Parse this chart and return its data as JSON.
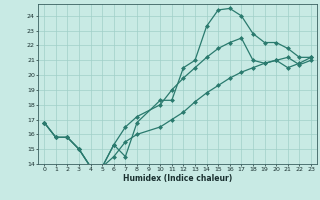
{
  "xlabel": "Humidex (Indice chaleur)",
  "bg_color": "#c8eae4",
  "grid_color": "#a0cfc8",
  "line_color": "#2a7a6e",
  "xlim": [
    -0.5,
    23.5
  ],
  "ylim": [
    14,
    24.8
  ],
  "xticks": [
    0,
    1,
    2,
    3,
    4,
    5,
    6,
    7,
    8,
    9,
    10,
    11,
    12,
    13,
    14,
    15,
    16,
    17,
    18,
    19,
    20,
    21,
    22,
    23
  ],
  "yticks": [
    14,
    15,
    16,
    17,
    18,
    19,
    20,
    21,
    22,
    23,
    24
  ],
  "line1_x": [
    0,
    1,
    2,
    3,
    4,
    5,
    6,
    7,
    8,
    10,
    11,
    12,
    13,
    14,
    15,
    16,
    17,
    18,
    19,
    20,
    21,
    22,
    23
  ],
  "line1_y": [
    16.8,
    15.8,
    15.8,
    15.0,
    13.8,
    13.8,
    15.3,
    14.5,
    16.8,
    18.3,
    18.3,
    20.5,
    21.0,
    23.3,
    24.4,
    24.5,
    24.0,
    22.8,
    22.2,
    22.2,
    21.8,
    21.2,
    21.2
  ],
  "line2_x": [
    0,
    1,
    2,
    3,
    4,
    5,
    6,
    7,
    8,
    10,
    11,
    12,
    13,
    14,
    15,
    16,
    17,
    18,
    19,
    20,
    21,
    22,
    23
  ],
  "line2_y": [
    16.8,
    15.8,
    15.8,
    15.0,
    13.8,
    13.8,
    15.3,
    16.5,
    17.2,
    18.0,
    19.0,
    19.8,
    20.5,
    21.2,
    21.8,
    22.2,
    22.5,
    21.0,
    20.8,
    21.0,
    20.5,
    20.8,
    21.2
  ],
  "line3_x": [
    0,
    1,
    2,
    3,
    4,
    5,
    6,
    7,
    8,
    10,
    11,
    12,
    13,
    14,
    15,
    16,
    17,
    18,
    19,
    20,
    21,
    22,
    23
  ],
  "line3_y": [
    16.8,
    15.8,
    15.8,
    15.0,
    13.8,
    13.8,
    14.5,
    15.5,
    16.0,
    16.5,
    17.0,
    17.5,
    18.2,
    18.8,
    19.3,
    19.8,
    20.2,
    20.5,
    20.8,
    21.0,
    21.2,
    20.7,
    21.0
  ]
}
